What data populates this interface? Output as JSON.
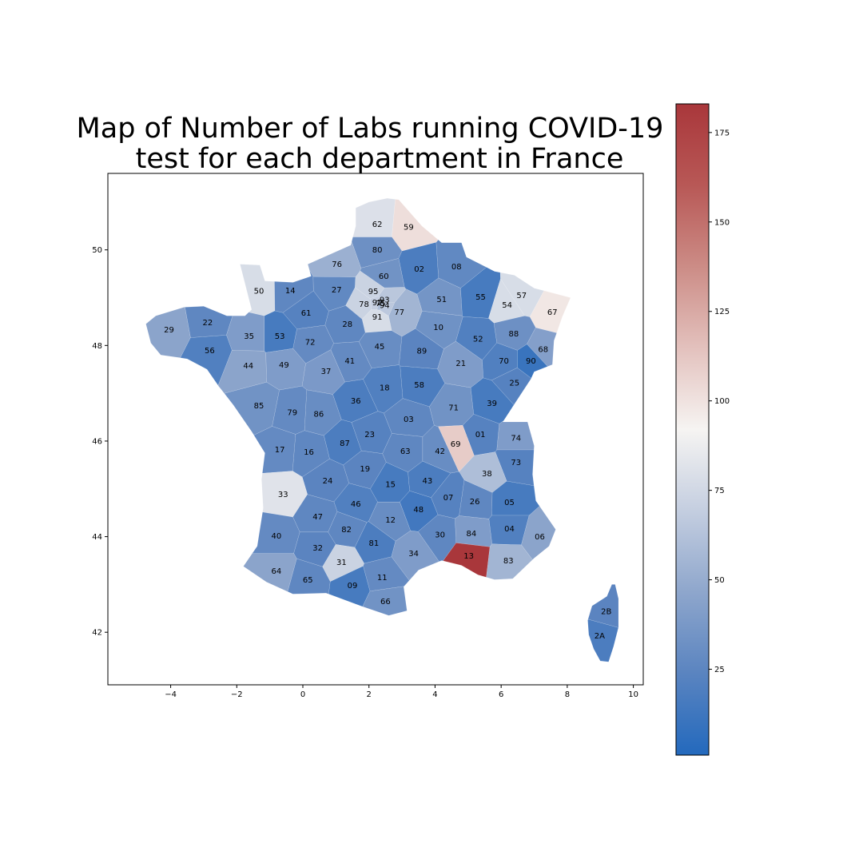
{
  "chart_data": {
    "type": "choropleth",
    "title_lines": [
      "Map of Number of Labs running COVID-19",
      "test for each department in France"
    ],
    "xlim": [
      -5.9,
      10.3
    ],
    "ylim": [
      40.9,
      51.6
    ],
    "x_ticks": [
      -4,
      -2,
      0,
      2,
      4,
      6,
      8,
      10
    ],
    "x_tick_labels": [
      "−4",
      "−2",
      "0",
      "2",
      "4",
      "6",
      "8",
      "10"
    ],
    "y_ticks": [
      42,
      44,
      46,
      48,
      50
    ],
    "y_tick_labels": [
      "42",
      "44",
      "46",
      "48",
      "50"
    ],
    "colorbar": {
      "colormap": "vlag",
      "range": [
        1,
        183
      ],
      "ticks": [
        25,
        50,
        75,
        100,
        125,
        150,
        175
      ],
      "tick_labels": [
        "25",
        "50",
        "75",
        "100",
        "125",
        "150",
        "175"
      ],
      "colors": [
        "#2369bd",
        "#5a84c0",
        "#8ea6cc",
        "#c4cee0",
        "#f6f4f2",
        "#e3c1bd",
        "#cc8c86",
        "#b85856",
        "#a9373b"
      ]
    },
    "departments": [
      {
        "code": "62",
        "lon": 2.25,
        "lat": 50.54,
        "value": 80
      },
      {
        "code": "59",
        "lon": 3.2,
        "lat": 50.48,
        "value": 102
      },
      {
        "code": "80",
        "lon": 2.25,
        "lat": 50.0,
        "value": 32
      },
      {
        "code": "76",
        "lon": 1.03,
        "lat": 49.7,
        "value": 52
      },
      {
        "code": "02",
        "lon": 3.52,
        "lat": 49.6,
        "value": 18
      },
      {
        "code": "08",
        "lon": 4.65,
        "lat": 49.65,
        "value": 27
      },
      {
        "code": "60",
        "lon": 2.45,
        "lat": 49.45,
        "value": 34
      },
      {
        "code": "50",
        "lon": -1.33,
        "lat": 49.14,
        "value": 78
      },
      {
        "code": "14",
        "lon": -0.38,
        "lat": 49.15,
        "value": 26
      },
      {
        "code": "27",
        "lon": 1.02,
        "lat": 49.17,
        "value": 27
      },
      {
        "code": "95",
        "lon": 2.13,
        "lat": 49.13,
        "value": 72
      },
      {
        "code": "93",
        "lon": 2.47,
        "lat": 48.96,
        "value": 65
      },
      {
        "code": "92",
        "lon": 2.25,
        "lat": 48.9,
        "value": 70
      },
      {
        "code": "75",
        "lon": 2.35,
        "lat": 48.88,
        "value": 60
      },
      {
        "code": "94",
        "lon": 2.47,
        "lat": 48.84,
        "value": 66
      },
      {
        "code": "78",
        "lon": 1.85,
        "lat": 48.87,
        "value": 72
      },
      {
        "code": "91",
        "lon": 2.25,
        "lat": 48.6,
        "value": 78
      },
      {
        "code": "77",
        "lon": 2.92,
        "lat": 48.7,
        "value": 55
      },
      {
        "code": "51",
        "lon": 4.2,
        "lat": 48.97,
        "value": 35
      },
      {
        "code": "55",
        "lon": 5.38,
        "lat": 49.02,
        "value": 16
      },
      {
        "code": "57",
        "lon": 6.62,
        "lat": 49.05,
        "value": 78
      },
      {
        "code": "54",
        "lon": 6.18,
        "lat": 48.85,
        "value": 78
      },
      {
        "code": "67",
        "lon": 7.55,
        "lat": 48.7,
        "value": 98
      },
      {
        "code": "61",
        "lon": 0.1,
        "lat": 48.68,
        "value": 22
      },
      {
        "code": "22",
        "lon": -2.88,
        "lat": 48.48,
        "value": 26
      },
      {
        "code": "29",
        "lon": -4.05,
        "lat": 48.33,
        "value": 45
      },
      {
        "code": "35",
        "lon": -1.63,
        "lat": 48.2,
        "value": 40
      },
      {
        "code": "53",
        "lon": -0.7,
        "lat": 48.2,
        "value": 16
      },
      {
        "code": "28",
        "lon": 1.35,
        "lat": 48.45,
        "value": 26
      },
      {
        "code": "10",
        "lon": 4.1,
        "lat": 48.38,
        "value": 33
      },
      {
        "code": "52",
        "lon": 5.3,
        "lat": 48.14,
        "value": 20
      },
      {
        "code": "88",
        "lon": 6.38,
        "lat": 48.25,
        "value": 32
      },
      {
        "code": "68",
        "lon": 7.27,
        "lat": 47.92,
        "value": 42
      },
      {
        "code": "56",
        "lon": -2.82,
        "lat": 47.9,
        "value": 20
      },
      {
        "code": "72",
        "lon": 0.22,
        "lat": 48.07,
        "value": 28
      },
      {
        "code": "45",
        "lon": 2.32,
        "lat": 47.98,
        "value": 30
      },
      {
        "code": "89",
        "lon": 3.6,
        "lat": 47.89,
        "value": 24
      },
      {
        "code": "41",
        "lon": 1.42,
        "lat": 47.68,
        "value": 28
      },
      {
        "code": "21",
        "lon": 4.78,
        "lat": 47.63,
        "value": 40
      },
      {
        "code": "70",
        "lon": 6.08,
        "lat": 47.68,
        "value": 20
      },
      {
        "code": "90",
        "lon": 6.9,
        "lat": 47.68,
        "value": 10
      },
      {
        "code": "44",
        "lon": -1.65,
        "lat": 47.58,
        "value": 45
      },
      {
        "code": "49",
        "lon": -0.57,
        "lat": 47.6,
        "value": 40
      },
      {
        "code": "37",
        "lon": 0.7,
        "lat": 47.46,
        "value": 38
      },
      {
        "code": "25",
        "lon": 6.4,
        "lat": 47.22,
        "value": 22
      },
      {
        "code": "18",
        "lon": 2.47,
        "lat": 47.12,
        "value": 20
      },
      {
        "code": "58",
        "lon": 3.52,
        "lat": 47.18,
        "value": 18
      },
      {
        "code": "36",
        "lon": 1.6,
        "lat": 46.84,
        "value": 18
      },
      {
        "code": "85",
        "lon": -1.33,
        "lat": 46.74,
        "value": 34
      },
      {
        "code": "79",
        "lon": -0.32,
        "lat": 46.6,
        "value": 28
      },
      {
        "code": "86",
        "lon": 0.48,
        "lat": 46.57,
        "value": 30
      },
      {
        "code": "71",
        "lon": 4.56,
        "lat": 46.7,
        "value": 34
      },
      {
        "code": "39",
        "lon": 5.72,
        "lat": 46.79,
        "value": 16
      },
      {
        "code": "03",
        "lon": 3.2,
        "lat": 46.46,
        "value": 26
      },
      {
        "code": "01",
        "lon": 5.37,
        "lat": 46.14,
        "value": 22
      },
      {
        "code": "74",
        "lon": 6.45,
        "lat": 46.07,
        "value": 40
      },
      {
        "code": "87",
        "lon": 1.27,
        "lat": 45.96,
        "value": 18
      },
      {
        "code": "23",
        "lon": 2.02,
        "lat": 46.14,
        "value": 22
      },
      {
        "code": "69",
        "lon": 4.62,
        "lat": 45.94,
        "value": 110
      },
      {
        "code": "17",
        "lon": -0.7,
        "lat": 45.82,
        "value": 28
      },
      {
        "code": "16",
        "lon": 0.18,
        "lat": 45.77,
        "value": 26
      },
      {
        "code": "63",
        "lon": 3.1,
        "lat": 45.79,
        "value": 26
      },
      {
        "code": "42",
        "lon": 4.15,
        "lat": 45.79,
        "value": 30
      },
      {
        "code": "73",
        "lon": 6.45,
        "lat": 45.56,
        "value": 22
      },
      {
        "code": "19",
        "lon": 1.88,
        "lat": 45.42,
        "value": 24
      },
      {
        "code": "38",
        "lon": 5.57,
        "lat": 45.32,
        "value": 60
      },
      {
        "code": "24",
        "lon": 0.75,
        "lat": 45.17,
        "value": 24
      },
      {
        "code": "15",
        "lon": 2.65,
        "lat": 45.1,
        "value": 16
      },
      {
        "code": "43",
        "lon": 3.77,
        "lat": 45.17,
        "value": 18
      },
      {
        "code": "33",
        "lon": -0.6,
        "lat": 44.89,
        "value": 82
      },
      {
        "code": "46",
        "lon": 1.6,
        "lat": 44.69,
        "value": 20
      },
      {
        "code": "07",
        "lon": 4.4,
        "lat": 44.82,
        "value": 22
      },
      {
        "code": "26",
        "lon": 5.2,
        "lat": 44.74,
        "value": 26
      },
      {
        "code": "05",
        "lon": 6.25,
        "lat": 44.72,
        "value": 16
      },
      {
        "code": "48",
        "lon": 3.5,
        "lat": 44.57,
        "value": 14
      },
      {
        "code": "47",
        "lon": 0.45,
        "lat": 44.42,
        "value": 26
      },
      {
        "code": "12",
        "lon": 2.65,
        "lat": 44.35,
        "value": 30
      },
      {
        "code": "82",
        "lon": 1.32,
        "lat": 44.15,
        "value": 26
      },
      {
        "code": "84",
        "lon": 5.1,
        "lat": 44.07,
        "value": 40
      },
      {
        "code": "04",
        "lon": 6.25,
        "lat": 44.17,
        "value": 20
      },
      {
        "code": "06",
        "lon": 7.17,
        "lat": 44.0,
        "value": 45
      },
      {
        "code": "40",
        "lon": -0.8,
        "lat": 44.02,
        "value": 28
      },
      {
        "code": "30",
        "lon": 4.15,
        "lat": 44.04,
        "value": 26
      },
      {
        "code": "81",
        "lon": 2.15,
        "lat": 43.87,
        "value": 18
      },
      {
        "code": "32",
        "lon": 0.45,
        "lat": 43.77,
        "value": 24
      },
      {
        "code": "34",
        "lon": 3.35,
        "lat": 43.65,
        "value": 40
      },
      {
        "code": "13",
        "lon": 5.02,
        "lat": 43.6,
        "value": 183
      },
      {
        "code": "83",
        "lon": 6.22,
        "lat": 43.5,
        "value": 55
      },
      {
        "code": "31",
        "lon": 1.17,
        "lat": 43.47,
        "value": 72
      },
      {
        "code": "64",
        "lon": -0.8,
        "lat": 43.28,
        "value": 45
      },
      {
        "code": "65",
        "lon": 0.15,
        "lat": 43.1,
        "value": 26
      },
      {
        "code": "11",
        "lon": 2.4,
        "lat": 43.15,
        "value": 28
      },
      {
        "code": "09",
        "lon": 1.5,
        "lat": 42.98,
        "value": 16
      },
      {
        "code": "66",
        "lon": 2.5,
        "lat": 42.65,
        "value": 34
      },
      {
        "code": "2B",
        "lon": 9.18,
        "lat": 42.44,
        "value": 24
      },
      {
        "code": "2A",
        "lon": 8.98,
        "lat": 41.93,
        "value": 18
      }
    ]
  }
}
